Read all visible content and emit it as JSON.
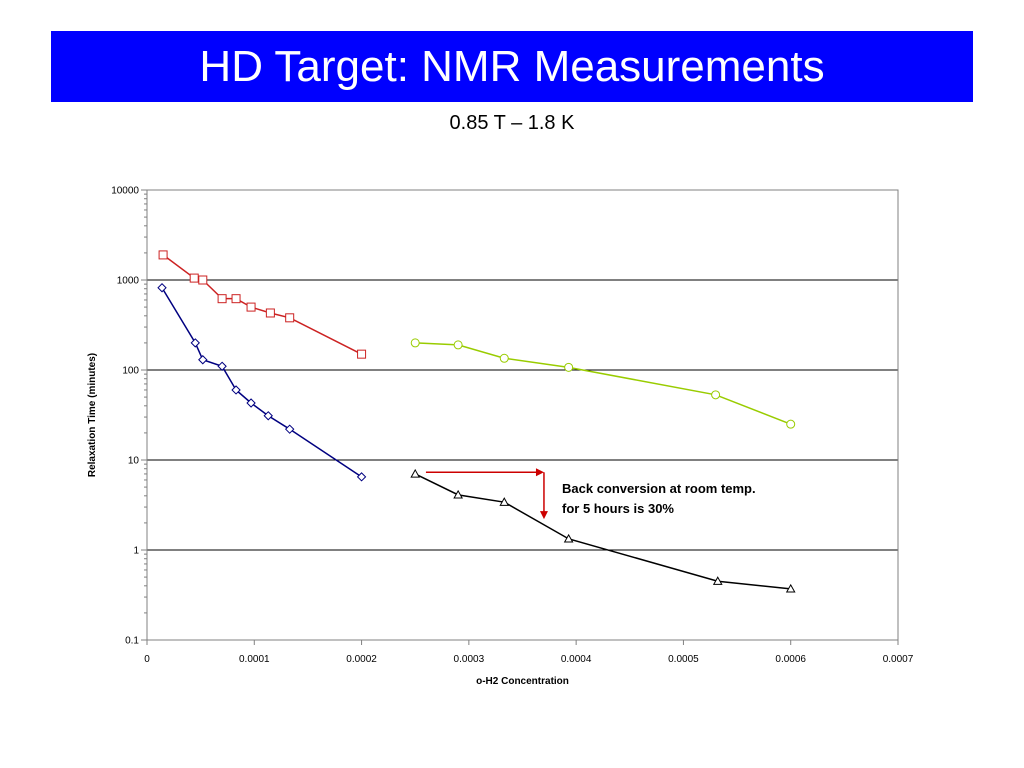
{
  "slide": {
    "title": "HD Target: NMR Measurements",
    "subtitle": "0.85 T – 1.8 K"
  },
  "colors": {
    "title_bar": "#0000ff",
    "title_text": "#ffffff",
    "annotation_arrow": "#cc0000"
  },
  "chart_data": {
    "type": "scatter",
    "title": "",
    "xlabel": "o-H2 Concentration",
    "ylabel": "Relaxation Time (minutes)",
    "xlim": [
      0,
      0.0007
    ],
    "ylim": [
      0.1,
      10000
    ],
    "yscale": "log",
    "grid": "horizontal",
    "xticks": [
      0,
      0.0001,
      0.0002,
      0.0003,
      0.0004,
      0.0005,
      0.0006,
      0.0007
    ],
    "xtick_labels": [
      "0",
      "0.0001",
      "0.0002",
      "0.0003",
      "0.0004",
      "0.0005",
      "0.0006",
      "0.0007"
    ],
    "yticks": [
      0.1,
      1,
      10,
      100,
      1000,
      10000
    ],
    "ytick_labels": [
      "0.1",
      "1",
      "10",
      "100",
      "1000",
      "10000"
    ],
    "series": [
      {
        "marker": "square",
        "color": "#cc2222",
        "x": [
          1.5e-05,
          4.4e-05,
          5.2e-05,
          7e-05,
          8.3e-05,
          9.7e-05,
          0.000115,
          0.000133,
          0.0002
        ],
        "y": [
          1900,
          1050,
          1000,
          620,
          620,
          500,
          430,
          380,
          150
        ]
      },
      {
        "marker": "diamond",
        "color": "#000080",
        "x": [
          1.4e-05,
          4.5e-05,
          5.2e-05,
          7e-05,
          8.3e-05,
          9.7e-05,
          0.000113,
          0.000133,
          0.0002
        ],
        "y": [
          820,
          200,
          130,
          110,
          60,
          43,
          31,
          22,
          6.5
        ]
      },
      {
        "marker": "circle",
        "color": "#99cc00",
        "x": [
          0.00025,
          0.00029,
          0.000333,
          0.000393,
          0.00053,
          0.0006
        ],
        "y": [
          200,
          190,
          135,
          107,
          53,
          25
        ]
      },
      {
        "marker": "triangle",
        "color": "#000000",
        "x": [
          0.00025,
          0.00029,
          0.000333,
          0.000393,
          0.000532,
          0.0006
        ],
        "y": [
          7,
          4.1,
          3.4,
          1.33,
          0.45,
          0.37
        ]
      }
    ],
    "annotation": {
      "lines": [
        "Back conversion at room temp.",
        "for 5 hours is 30%"
      ],
      "arrow_from_x": 0.00026,
      "arrow_corner_x": 0.00037,
      "arrow_from_y": 7.3,
      "arrow_to_y": 2.2
    }
  }
}
